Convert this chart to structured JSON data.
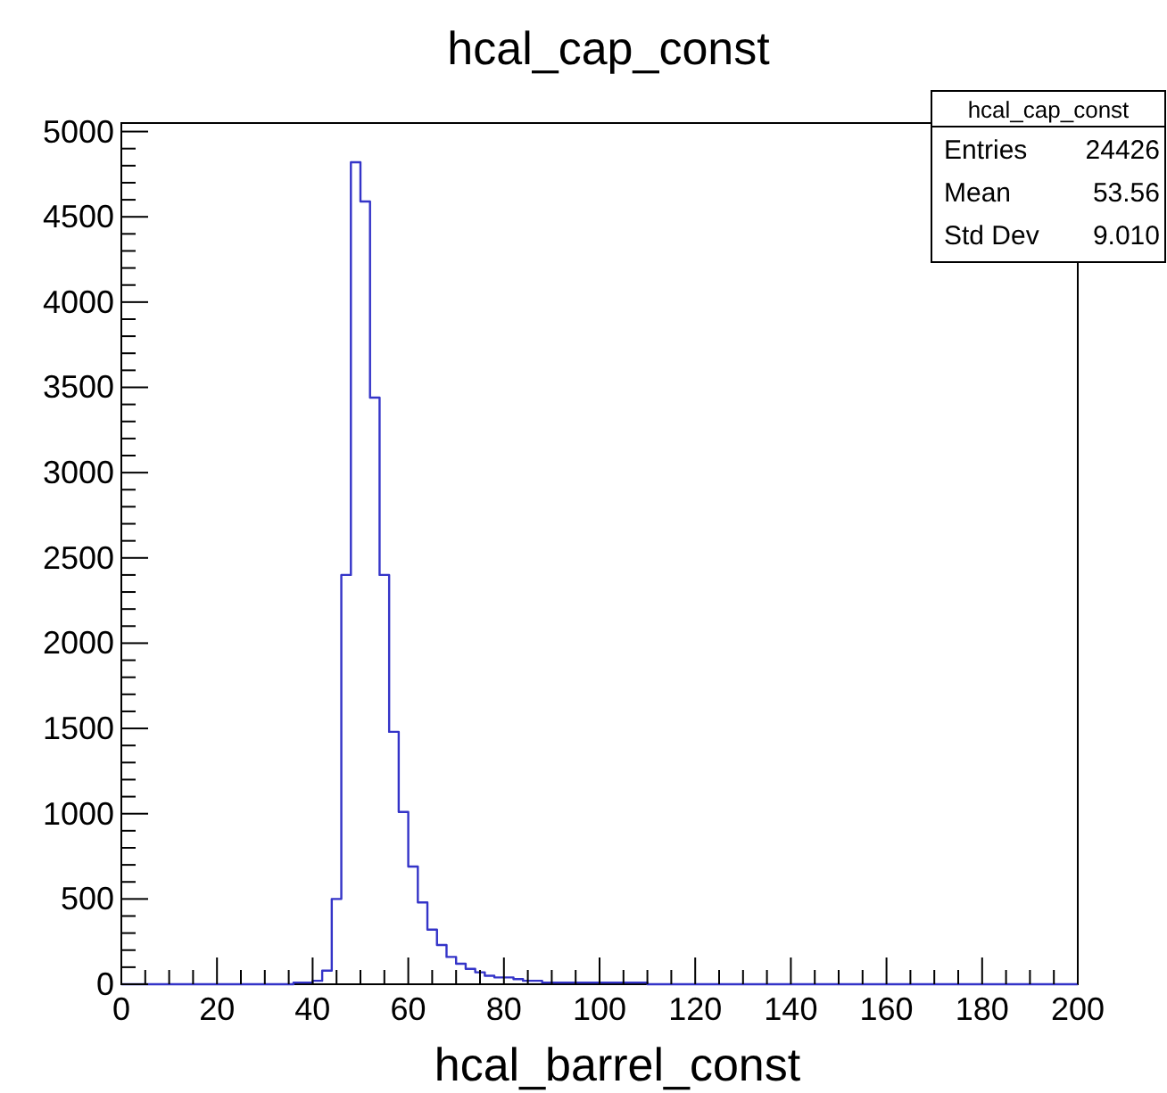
{
  "chart_data": {
    "type": "histogram",
    "title": "hcal_cap_const",
    "xlabel": "hcal_barrel_const",
    "bins": [
      0,
      2,
      4,
      6,
      8,
      10,
      12,
      14,
      16,
      18,
      20,
      22,
      24,
      26,
      28,
      30,
      32,
      34,
      36,
      38,
      40,
      42,
      44,
      46,
      48,
      50,
      52,
      54,
      56,
      58,
      60,
      62,
      64,
      66,
      68,
      70,
      72,
      74,
      76,
      78,
      80,
      82,
      84,
      86,
      88,
      90,
      92,
      94,
      96,
      98,
      100,
      102,
      104,
      106,
      108,
      110,
      112,
      114,
      116,
      118,
      120,
      122,
      124,
      126,
      128,
      130,
      132,
      134,
      136,
      138,
      140,
      142,
      144,
      146,
      148,
      150,
      152,
      154,
      156,
      158,
      160,
      162,
      164,
      166,
      168,
      170,
      172,
      174,
      176,
      178,
      180,
      182,
      184,
      186,
      188,
      190,
      192,
      194,
      196,
      198,
      200
    ],
    "values": [
      0,
      0,
      0,
      0,
      0,
      0,
      0,
      0,
      0,
      0,
      0,
      0,
      0,
      0,
      0,
      0,
      0,
      0,
      10,
      10,
      20,
      80,
      500,
      2400,
      4820,
      4590,
      3440,
      2400,
      1480,
      1010,
      690,
      480,
      320,
      230,
      160,
      120,
      90,
      70,
      50,
      40,
      40,
      30,
      20,
      20,
      10,
      10,
      10,
      10,
      10,
      10,
      10,
      10,
      10,
      10,
      10,
      0,
      0,
      0,
      0,
      0,
      0,
      0,
      0,
      0,
      0,
      0,
      0,
      0,
      0,
      0,
      0,
      0,
      0,
      0,
      0,
      0,
      0,
      0,
      0,
      0,
      0,
      0,
      0,
      0,
      0,
      0,
      0,
      0,
      0,
      0,
      0,
      0,
      0,
      0,
      0,
      0,
      0,
      0,
      0,
      0
    ],
    "color": "#3434c8",
    "xlim": [
      0,
      200
    ],
    "xticks": [
      0,
      {
        "value": 5,
        "label": null
      },
      {
        "value": 10,
        "label": null
      },
      {
        "value": 15,
        "label": null
      },
      20,
      {
        "value": 25,
        "label": null
      },
      {
        "value": 30,
        "label": null
      },
      {
        "value": 35,
        "label": null
      },
      40,
      {
        "value": 45,
        "label": null
      },
      {
        "value": 50,
        "label": null
      },
      {
        "value": 55,
        "label": null
      },
      60,
      {
        "value": 65,
        "label": null
      },
      {
        "value": 70,
        "label": null
      },
      {
        "value": 75,
        "label": null
      },
      80,
      {
        "value": 85,
        "label": null
      },
      {
        "value": 90,
        "label": null
      },
      {
        "value": 95,
        "label": null
      },
      100,
      {
        "value": 105,
        "label": null
      },
      {
        "value": 110,
        "label": null
      },
      {
        "value": 115,
        "label": null
      },
      120,
      {
        "value": 125,
        "label": null
      },
      {
        "value": 130,
        "label": null
      },
      {
        "value": 135,
        "label": null
      },
      140,
      {
        "value": 145,
        "label": null
      },
      {
        "value": 150,
        "label": null
      },
      {
        "value": 155,
        "label": null
      },
      160,
      {
        "value": 165,
        "label": null
      },
      {
        "value": 170,
        "label": null
      },
      {
        "value": 175,
        "label": null
      },
      180,
      {
        "value": 185,
        "label": null
      },
      {
        "value": 190,
        "label": null
      },
      {
        "value": 195,
        "label": null
      },
      200
    ],
    "ylim": [
      0,
      5050
    ],
    "yticks": [
      0,
      {
        "value": 100,
        "label": null
      },
      {
        "value": 200,
        "label": null
      },
      {
        "value": 300,
        "label": null
      },
      {
        "value": 400,
        "label": null
      },
      500,
      {
        "value": 600,
        "label": null
      },
      {
        "value": 700,
        "label": null
      },
      {
        "value": 800,
        "label": null
      },
      {
        "value": 900,
        "label": null
      },
      1000,
      {
        "value": 1100,
        "label": null
      },
      {
        "value": 1200,
        "label": null
      },
      {
        "value": 1300,
        "label": null
      },
      {
        "value": 1400,
        "label": null
      },
      1500,
      {
        "value": 1600,
        "label": null
      },
      {
        "value": 1700,
        "label": null
      },
      {
        "value": 1800,
        "label": null
      },
      {
        "value": 1900,
        "label": null
      },
      2000,
      {
        "value": 2100,
        "label": null
      },
      {
        "value": 2200,
        "label": null
      },
      {
        "value": 2300,
        "label": null
      },
      {
        "value": 2400,
        "label": null
      },
      2500,
      {
        "value": 2600,
        "label": null
      },
      {
        "value": 2700,
        "label": null
      },
      {
        "value": 2800,
        "label": null
      },
      {
        "value": 2900,
        "label": null
      },
      3000,
      {
        "value": 3100,
        "label": null
      },
      {
        "value": 3200,
        "label": null
      },
      {
        "value": 3300,
        "label": null
      },
      {
        "value": 3400,
        "label": null
      },
      3500,
      {
        "value": 3600,
        "label": null
      },
      {
        "value": 3700,
        "label": null
      },
      {
        "value": 3800,
        "label": null
      },
      {
        "value": 3900,
        "label": null
      },
      4000,
      {
        "value": 4100,
        "label": null
      },
      {
        "value": 4200,
        "label": null
      },
      {
        "value": 4300,
        "label": null
      },
      {
        "value": 4400,
        "label": null
      },
      4500,
      {
        "value": 4600,
        "label": null
      },
      {
        "value": 4700,
        "label": null
      },
      {
        "value": 4800,
        "label": null
      },
      {
        "value": 4900,
        "label": null
      },
      5000
    ],
    "legend_title": "hcal_cap_const",
    "annotations": [
      "Entries 24426",
      "Mean 53.56",
      "Std Dev 9.010"
    ]
  }
}
